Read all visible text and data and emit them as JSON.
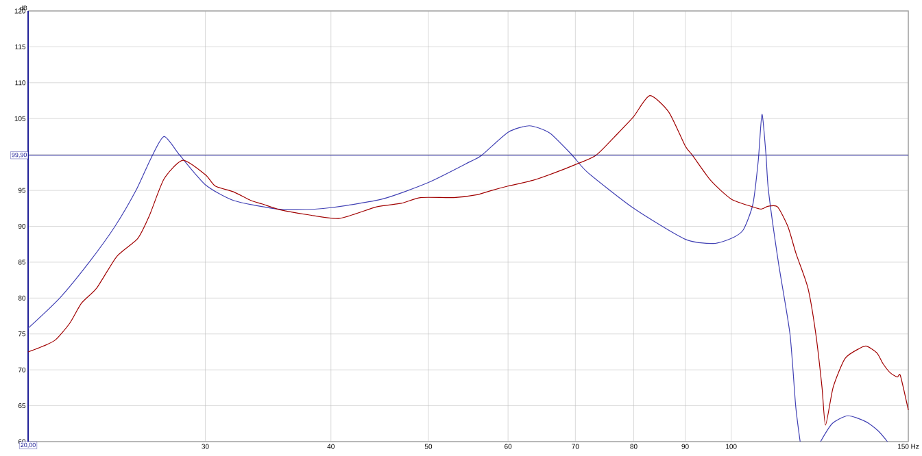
{
  "chart_data": {
    "type": "line",
    "ylabel": "dB",
    "xlim": [
      20,
      150
    ],
    "ylim": [
      60,
      120
    ],
    "log": "x",
    "grid": true,
    "xticks": [
      30,
      40,
      50,
      60,
      70,
      80,
      90,
      100,
      {
        "value": 150,
        "label": "150 Hz"
      }
    ],
    "yticks": [
      60,
      65,
      70,
      75,
      80,
      85,
      90,
      95,
      {
        "value": 100,
        "label": null
      },
      105,
      110,
      115,
      120
    ],
    "ref_lines": [
      {
        "axis": "y",
        "value": 99.9,
        "label": "99,90",
        "color": "#1e1e96"
      }
    ],
    "annotations": [
      {
        "text": "20,00",
        "x": 20
      }
    ],
    "series": [
      {
        "color": "#4040b4",
        "x": [
          20,
          21.5,
          23,
          24.4,
          25.6,
          26.5,
          27.3,
          28.3,
          30,
          32,
          35,
          37,
          40,
          45,
          50,
          55,
          56.5,
          60,
          63,
          66,
          69.5,
          72,
          80,
          90,
          96,
          100,
          102.8,
          105.1,
          106.4,
          107.3,
          108.3,
          108.9,
          111.4,
          114.4,
          115.9,
          117.1,
          120,
          122.7,
          126,
          130.6,
          136,
          140,
          143
        ],
        "values": [
          75.8,
          80,
          85,
          90,
          95,
          99.5,
          102.5,
          99.9,
          95.8,
          93.6,
          92.5,
          92.3,
          92.6,
          93.8,
          96.1,
          99.0,
          99.9,
          103.1,
          104.0,
          103.0,
          99.9,
          97.5,
          92.5,
          88.2,
          87.6,
          88.3,
          89.5,
          93.1,
          99.2,
          105.6,
          99.9,
          95,
          85,
          75,
          65,
          60,
          null,
          60,
          62.5,
          63.6,
          62.8,
          61.5,
          60
        ]
      },
      {
        "color": "#a00000",
        "x": [
          20,
          20.7,
          21.3,
          22.0,
          22.6,
          23.4,
          24.5,
          25.7,
          26.4,
          27.3,
          28.5,
          30,
          30.7,
          32,
          33.3,
          34.2,
          35.6,
          38,
          40.8,
          44.4,
          47,
          49.1,
          53,
          55.9,
          57.8,
          60,
          63.5,
          66.6,
          70,
          73.4,
          77.1,
          80,
          83,
          86.7,
          90,
          91.5,
          95.4,
          100,
          105.1,
          107.1,
          108.9,
          111.2,
          113.9,
          116,
          119.2,
          121.4,
          123.1,
          124.1,
          126.3,
          129.8,
          134.2,
          136.4,
          139.7,
          141.5,
          143.9,
          146.3,
          147.3,
          150
        ],
        "values": [
          72.5,
          73.3,
          74.2,
          76.5,
          79.3,
          81.4,
          85.8,
          88.3,
          91.5,
          96.6,
          99.2,
          97.2,
          95.6,
          94.8,
          93.6,
          93.1,
          92.3,
          91.6,
          91.1,
          92.7,
          93.2,
          94.0,
          94.0,
          94.4,
          95.0,
          95.6,
          96.4,
          97.4,
          98.6,
          99.9,
          102.9,
          105.3,
          108.2,
          105.9,
          101.2,
          99.9,
          96.4,
          93.8,
          92.7,
          92.4,
          92.8,
          92.7,
          89.9,
          86.2,
          81.4,
          74.9,
          67.6,
          62.3,
          67.6,
          71.6,
          73.0,
          73.3,
          72.3,
          70.9,
          69.6,
          69.0,
          69.2,
          64.4
        ]
      }
    ]
  }
}
